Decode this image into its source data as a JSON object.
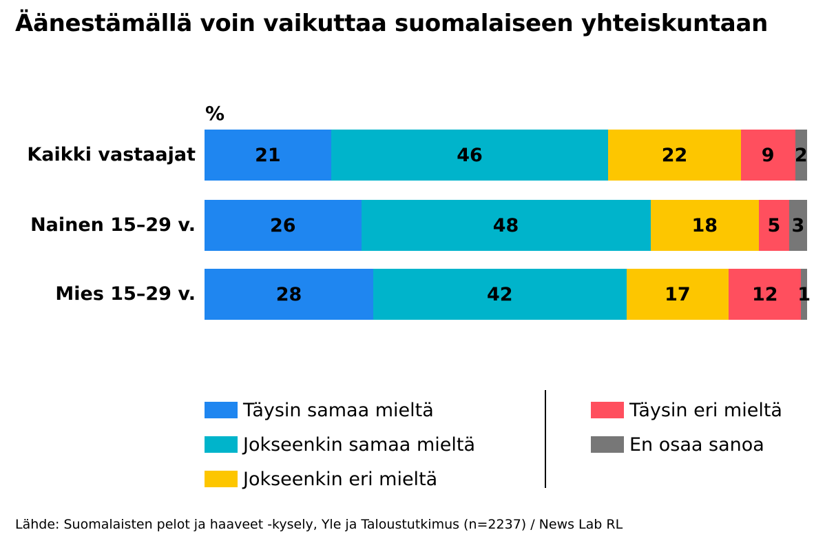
{
  "chart_data": {
    "type": "bar",
    "orientation": "horizontal",
    "stacked": true,
    "title": "Äänestämällä voin vaikuttaa suomalaiseen yhteiskuntaan",
    "unit_label": "%",
    "categories": [
      "Kaikki vastaajat",
      "Nainen 15–29 v.",
      "Mies 15–29 v."
    ],
    "series": [
      {
        "name": "Täysin samaa mieltä",
        "color": "#1f86f0",
        "values": [
          21,
          26,
          28
        ]
      },
      {
        "name": "Jokseenkin samaa mieltä",
        "color": "#00b4cb",
        "values": [
          46,
          48,
          42
        ]
      },
      {
        "name": "Jokseenkin eri mieltä",
        "color": "#fdc600",
        "values": [
          22,
          18,
          17
        ]
      },
      {
        "name": "Täysin eri mieltä",
        "color": "#ff4f5e",
        "values": [
          9,
          5,
          12
        ]
      },
      {
        "name": "En osaa sanoa",
        "color": "#777777",
        "values": [
          2,
          3,
          1
        ]
      }
    ],
    "legend_columns": [
      [
        0,
        1,
        2
      ],
      [
        3,
        4
      ]
    ],
    "source": "Lähde: Suomalaisten pelot ja haaveet -kysely, Yle ja Taloustutkimus (n=2237) / News Lab RL"
  }
}
